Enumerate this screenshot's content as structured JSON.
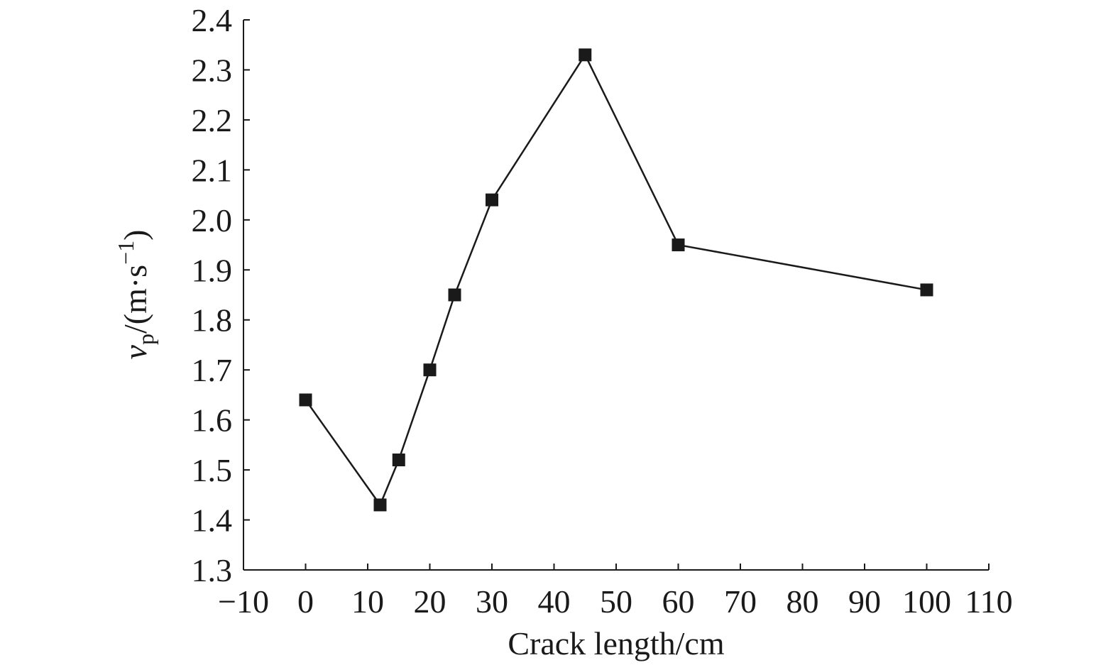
{
  "chart_data": {
    "type": "line",
    "xlabel": "Crack length/cm",
    "ylabel_parts": [
      "v",
      "p",
      "/(m·s",
      "−1",
      ")"
    ],
    "x": [
      0,
      12,
      15,
      20,
      24,
      30,
      45,
      60,
      100
    ],
    "series": [
      {
        "color": "#1a1a1a",
        "marker": "square",
        "values": [
          1.64,
          1.43,
          1.52,
          1.7,
          1.85,
          2.04,
          2.33,
          1.95,
          1.86
        ]
      }
    ],
    "xlim": [
      -10,
      110
    ],
    "xticks": [
      {
        "value": -10,
        "label": "−10"
      },
      0,
      10,
      20,
      30,
      40,
      50,
      60,
      70,
      80,
      90,
      100,
      110
    ],
    "ylim": [
      1.3,
      2.4
    ],
    "yticks": [
      1.3,
      1.4,
      1.5,
      1.6,
      1.7,
      1.8,
      1.9,
      {
        "value": 2.0,
        "label": "2.0"
      },
      2.1,
      2.2,
      2.3,
      2.4
    ],
    "grid": false
  }
}
